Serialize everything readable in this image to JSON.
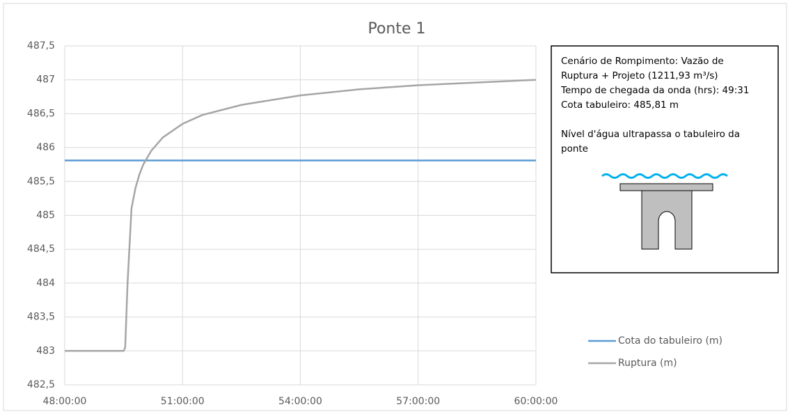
{
  "chart_data": {
    "type": "line",
    "title": "Ponte 1",
    "x": [
      48,
      49.5,
      49.54,
      49.6,
      49.7,
      49.8,
      49.9,
      50.0,
      50.2,
      50.5,
      51.0,
      51.5,
      52.5,
      54,
      55.5,
      57,
      58.5,
      60
    ],
    "series": [
      {
        "name": "Cota do tabuleiro (m)",
        "color": "#5b9bd5",
        "values": [
          485.81,
          485.81,
          485.81,
          485.81,
          485.81,
          485.81,
          485.81,
          485.81,
          485.81,
          485.81,
          485.81,
          485.81,
          485.81,
          485.81,
          485.81,
          485.81,
          485.81,
          485.81
        ]
      },
      {
        "name": "Ruptura (m)",
        "color": "#a5a5a5",
        "values": [
          483,
          483,
          483.05,
          484,
          485.1,
          485.4,
          485.6,
          485.75,
          485.95,
          486.15,
          486.35,
          486.48,
          486.63,
          486.77,
          486.86,
          486.92,
          486.96,
          487.0
        ]
      }
    ],
    "xlim": [
      48,
      60
    ],
    "xticks": [
      {
        "value": 48,
        "label": "48:00:00"
      },
      {
        "value": 51,
        "label": "51:00:00"
      },
      {
        "value": 54,
        "label": "54:00:00"
      },
      {
        "value": 57,
        "label": "57:00:00"
      },
      {
        "value": 60,
        "label": "60:00:00"
      }
    ],
    "ylim": [
      482.5,
      487.5
    ],
    "yticks": [
      {
        "value": 482.5,
        "label": "482,5"
      },
      483,
      {
        "value": 483.5,
        "label": "483,5"
      },
      484,
      {
        "value": 484.5,
        "label": "484,5"
      },
      485,
      {
        "value": 485.5,
        "label": "485,5"
      },
      486,
      {
        "value": 486.5,
        "label": "486,5"
      },
      487,
      {
        "value": 487.5,
        "label": "487,5"
      }
    ],
    "grid": true,
    "legend": "right",
    "annotation": {
      "paragraphs": [
        [
          "Cenário de Rompimento: Vazão de",
          "Ruptura + Projeto (1211,93 m³/s)",
          "Tempo de chegada da onda (hrs): 49:31",
          "Cota tabuleiro: 485,81 m"
        ],
        [
          "Nível d'água ultrapassa o tabuleiro da",
          "ponte"
        ]
      ]
    }
  }
}
